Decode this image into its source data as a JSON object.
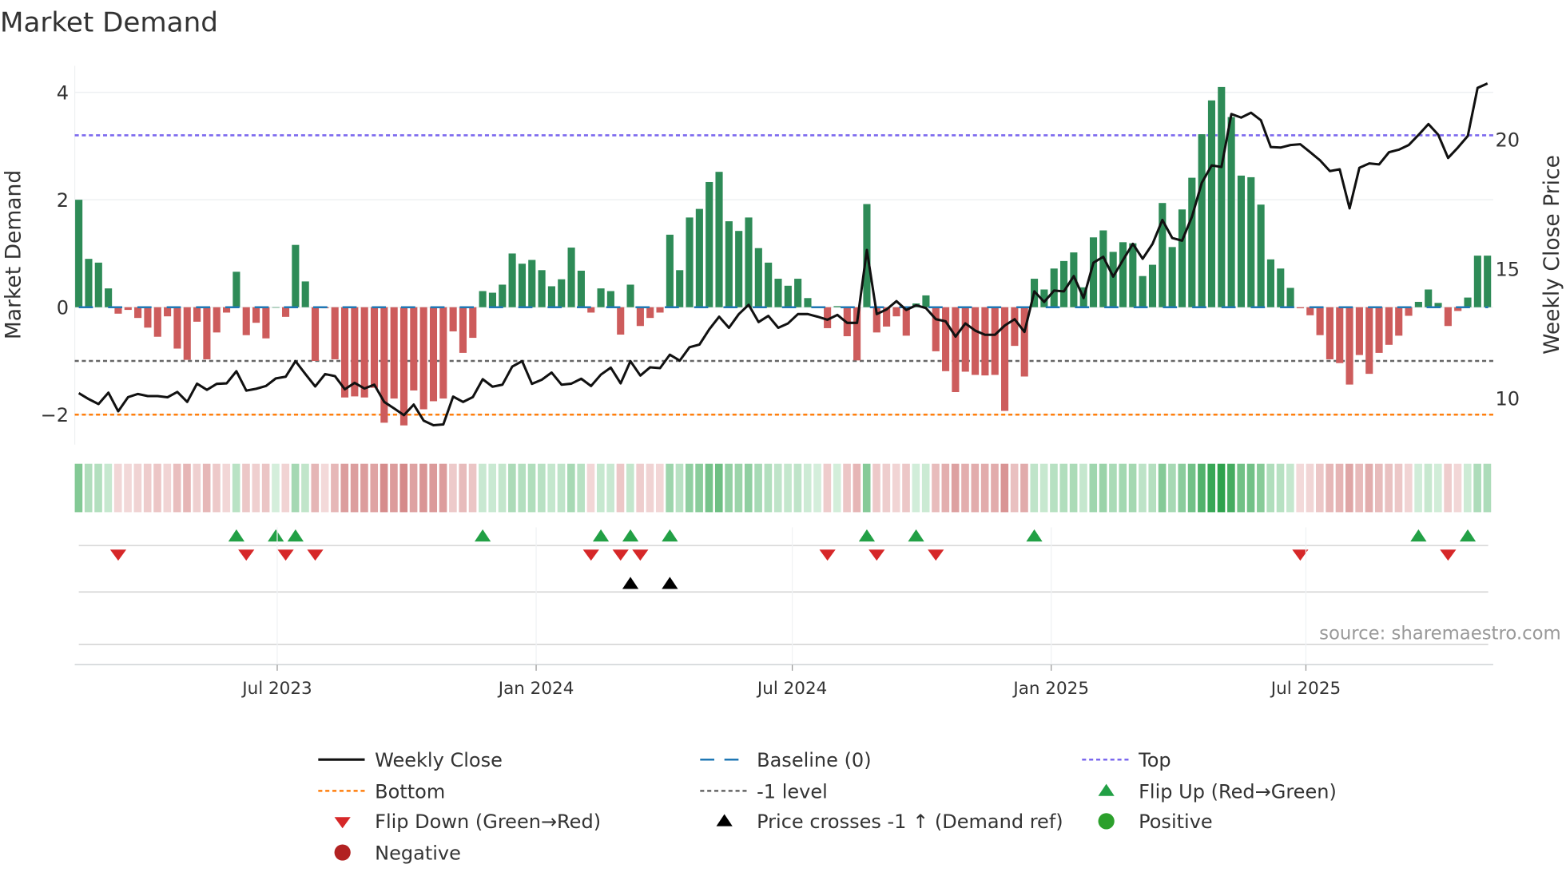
{
  "title": "Market Demand",
  "source": "source: sharemaestro.com",
  "colors": {
    "bar_positive": "#2e8b57",
    "bar_negative": "#cd5c5c",
    "price_line": "#111111",
    "baseline": "#1f77b4",
    "top": "#7b68ee",
    "bottom": "#ff7f0e",
    "minus_one": "#666666",
    "flip_up": "#22a045",
    "flip_down": "#d62728",
    "cross": "#000000",
    "positive_dot": "#2ca02c",
    "negative_dot": "#b22222"
  },
  "chart_data": {
    "type": "bar+line",
    "title": "Market Demand",
    "x_start": "2023-02-10",
    "x_step_days": 7,
    "left_axis": {
      "label": "Market Demand",
      "ylim": [
        -2.5,
        4.5
      ],
      "ticks": [
        4,
        2,
        0,
        -2
      ],
      "tick_labels": [
        "4",
        "2",
        "0",
        "−2"
      ]
    },
    "right_axis": {
      "label": "Weekly Close Price",
      "ticks": [
        20,
        15,
        10
      ],
      "tick_labels": [
        "20",
        "15",
        "10"
      ]
    },
    "x_ticks": [
      {
        "date": "2023-07-01",
        "label": "Jul 2023"
      },
      {
        "date": "2024-01-01",
        "label": "Jan 2024"
      },
      {
        "date": "2024-07-01",
        "label": "Jul 2024"
      },
      {
        "date": "2025-01-01",
        "label": "Jan 2025"
      },
      {
        "date": "2025-07-01",
        "label": "Jul 2025"
      }
    ],
    "reference_lines": {
      "baseline": 0,
      "top": 3.2,
      "bottom": -2,
      "minus_one": -1
    },
    "demand": [
      2.0,
      0.9,
      0.83,
      0.35,
      -0.12,
      -0.05,
      -0.2,
      -0.38,
      -0.55,
      -0.17,
      -0.77,
      -0.98,
      -0.27,
      -0.97,
      -0.47,
      -0.1,
      0.66,
      -0.52,
      -0.29,
      -0.58,
      0.0,
      -0.18,
      1.16,
      0.48,
      -1.0,
      -0.02,
      -0.97,
      -1.68,
      -1.66,
      -1.68,
      -1.5,
      -2.15,
      -1.7,
      -2.2,
      -1.55,
      -1.9,
      -1.75,
      -1.7,
      -0.45,
      -0.85,
      -0.57,
      0.3,
      0.27,
      0.42,
      1.0,
      0.81,
      0.88,
      0.69,
      0.39,
      0.52,
      1.11,
      0.68,
      -0.1,
      0.35,
      0.3,
      -0.51,
      0.42,
      -0.35,
      -0.2,
      -0.1,
      1.35,
      0.69,
      1.67,
      1.83,
      2.33,
      2.52,
      1.6,
      1.42,
      1.67,
      1.1,
      0.83,
      0.53,
      0.4,
      0.53,
      0.17,
      0.0,
      -0.39,
      0.02,
      -0.54,
      -0.99,
      1.92,
      -0.47,
      -0.36,
      -0.17,
      -0.53,
      0.07,
      0.22,
      -0.82,
      -1.19,
      -1.58,
      -1.2,
      -1.26,
      -1.27,
      -1.26,
      -1.93,
      -0.72,
      -1.29,
      0.53,
      0.33,
      0.72,
      0.86,
      1.02,
      0.37,
      1.3,
      1.43,
      1.03,
      1.21,
      1.19,
      0.58,
      0.79,
      1.94,
      1.12,
      1.82,
      2.41,
      3.22,
      3.85,
      4.1,
      3.54,
      2.45,
      2.42,
      1.91,
      0.89,
      0.72,
      0.36,
      -0.02,
      -0.15,
      -0.52,
      -0.97,
      -1.04,
      -1.44,
      -0.89,
      -1.24,
      -0.85,
      -0.7,
      -0.53,
      -0.16,
      0.1,
      0.33,
      0.08,
      -0.35,
      -0.07,
      0.18,
      0.96,
      0.96
    ],
    "weekly_close": [
      10.19,
      9.96,
      9.77,
      10.21,
      9.49,
      10.04,
      10.16,
      10.08,
      10.08,
      10.03,
      10.24,
      9.85,
      10.56,
      10.32,
      10.55,
      10.57,
      11.04,
      10.29,
      10.36,
      10.47,
      10.76,
      10.83,
      11.43,
      10.93,
      10.45,
      10.93,
      10.85,
      10.34,
      10.59,
      10.37,
      10.52,
      9.85,
      9.6,
      9.34,
      9.75,
      9.13,
      8.95,
      8.98,
      10.06,
      9.85,
      10.04,
      10.73,
      10.44,
      10.52,
      11.22,
      11.43,
      10.55,
      10.71,
      10.99,
      10.52,
      10.56,
      10.75,
      10.47,
      10.91,
      11.18,
      10.57,
      11.43,
      10.87,
      11.19,
      11.16,
      11.68,
      11.45,
      11.97,
      12.07,
      12.66,
      13.15,
      12.72,
      13.25,
      13.61,
      12.94,
      13.18,
      12.72,
      12.89,
      13.25,
      13.25,
      13.15,
      13.03,
      13.22,
      12.91,
      12.91,
      15.73,
      13.25,
      13.43,
      13.75,
      13.41,
      13.59,
      13.48,
      13.05,
      12.97,
      12.38,
      12.89,
      12.61,
      12.45,
      12.45,
      12.81,
      13.05,
      12.56,
      14.13,
      13.72,
      14.16,
      14.13,
      14.72,
      13.87,
      15.24,
      15.47,
      14.7,
      15.34,
      15.97,
      15.39,
      15.97,
      16.89,
      16.19,
      16.09,
      17.02,
      18.33,
      19.0,
      18.94,
      20.99,
      20.85,
      21.04,
      20.75,
      19.71,
      19.69,
      19.79,
      19.82,
      19.51,
      19.2,
      18.78,
      18.85,
      17.34,
      18.91,
      19.08,
      19.04,
      19.51,
      19.61,
      19.79,
      20.18,
      20.6,
      20.19,
      19.29,
      19.69,
      20.14,
      22.0,
      22.17
    ],
    "flip_up_weeks": [
      16,
      20,
      22,
      41,
      53,
      56,
      60,
      80,
      85,
      97,
      136,
      141
    ],
    "flip_down_weeks": [
      4,
      17,
      21,
      24,
      52,
      55,
      57,
      76,
      81,
      87,
      124,
      139
    ],
    "price_cross_weeks": [
      56,
      60
    ],
    "legend": {
      "placement": "bottom",
      "items": [
        {
          "key": "weekly_close",
          "label": "Weekly Close"
        },
        {
          "key": "baseline",
          "label": "Baseline (0)"
        },
        {
          "key": "top",
          "label": "Top"
        },
        {
          "key": "bottom",
          "label": "Bottom"
        },
        {
          "key": "minus_one",
          "label": "-1 level"
        },
        {
          "key": "flip_up",
          "label": "Flip Up (Red→Green)"
        },
        {
          "key": "flip_down",
          "label": "Flip Down (Green→Red)"
        },
        {
          "key": "cross",
          "label": "Price crosses -1 ↑ (Demand ref)"
        },
        {
          "key": "positive",
          "label": "Positive"
        },
        {
          "key": "negative",
          "label": "Negative"
        }
      ]
    }
  }
}
